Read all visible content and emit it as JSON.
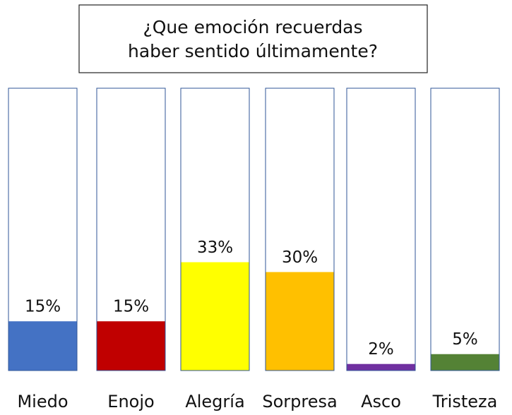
{
  "chart_data": {
    "type": "bar",
    "title": [
      "¿Que emoción recuerdas",
      "haber sentido últimamente?"
    ],
    "categories": [
      "Miedo",
      "Enojo",
      "Alegría",
      "Sorpresa",
      "Asco",
      "Tristeza"
    ],
    "values": [
      15,
      15,
      33,
      30,
      2,
      5
    ],
    "value_labels": [
      "15%",
      "15%",
      "33%",
      "30%",
      "2%",
      "5%"
    ],
    "colors": [
      "#4472c4",
      "#c00000",
      "#ffff00",
      "#ffc000",
      "#7030a0",
      "#548235"
    ],
    "ylim": [
      0,
      86
    ]
  }
}
